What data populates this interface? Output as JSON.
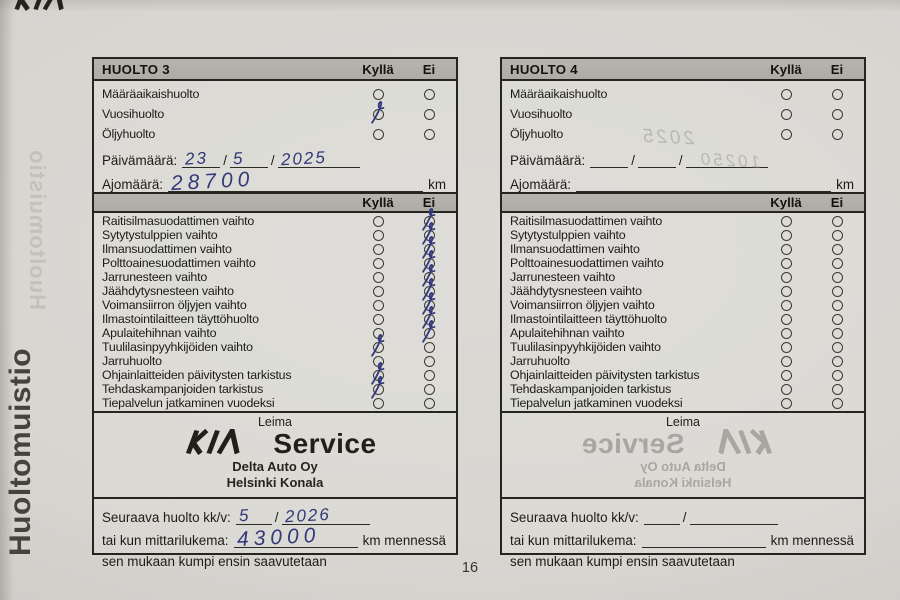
{
  "page_number": "16",
  "side_title": "Huoltomuistio",
  "side_title_ghost": "Huoltomuistio",
  "labels": {
    "yes": "Kyllä",
    "no": "Ei",
    "date": "Päivämäärä:",
    "mileage": "Ajomäärä:",
    "km": "km",
    "stamp": "Leima",
    "service": "Service",
    "next_service": "Seuraava huolto kk/v:",
    "or_odometer": "tai kun mittarilukema:",
    "km_by": "km mennessä",
    "whichever_first": "sen mukaan kumpi ensin saavutetaan"
  },
  "summary_items": [
    "Määräaikaishuolto",
    "Vuosihuolto",
    "Öljyhuolto"
  ],
  "maintenance_items": [
    "Raitisilmasuodattimen vaihto",
    "Sytytystulppien vaihto",
    "Ilmansuodattimen vaihto",
    "Polttoainesuodattimen vaihto",
    "Jarrunesteen vaihto",
    "Jäähdytysnesteen vaihto",
    "Voimansiirron öljyjen vaihto",
    "Ilmastointilaitteen täyttöhuolto",
    "Apulaitehihnan vaihto",
    "Tuulilasinpyyhkijöiden vaihto",
    "Jarruhuolto",
    "Ohjainlaitteiden päivitysten tarkistus",
    "Tehdaskampanjoiden tarkistus",
    "Tiepalvelun jatkaminen vuodeksi"
  ],
  "boxes": [
    {
      "title": "HUOLTO 3",
      "summary_checks": [
        null,
        "yes",
        null
      ],
      "date": {
        "day": "23",
        "month": "5",
        "year": "2025"
      },
      "mileage": "28700",
      "item_checks": [
        "no",
        "no",
        "no",
        "no",
        "no",
        "no",
        "no",
        "no",
        "no",
        "yes",
        null,
        "yes",
        "yes",
        null
      ],
      "stamp": {
        "dealer": "Delta Auto Oy",
        "location": "Helsinki Konala",
        "mirrored": false
      },
      "next_service": {
        "month": "5",
        "year": "2026",
        "odometer": "43000"
      }
    },
    {
      "title": "HUOLTO 4",
      "summary_checks": [
        null,
        null,
        null
      ],
      "date": {
        "day": "",
        "month": "",
        "year": ""
      },
      "mileage": "",
      "item_checks": [
        null,
        null,
        null,
        null,
        null,
        null,
        null,
        null,
        null,
        null,
        null,
        null,
        null,
        null
      ],
      "stamp": {
        "dealer": "Delta Auto Oy",
        "location": "Helsinki Konala",
        "mirrored": true
      },
      "next_service": {
        "month": "",
        "year": "",
        "odometer": ""
      },
      "bleedthrough": {
        "date": "2025",
        "mileage": "10250"
      }
    }
  ],
  "colors": {
    "ink": "#323879",
    "paper": "#d7d5d0",
    "header_bar": "#b2afa9",
    "border": "#26241f"
  }
}
